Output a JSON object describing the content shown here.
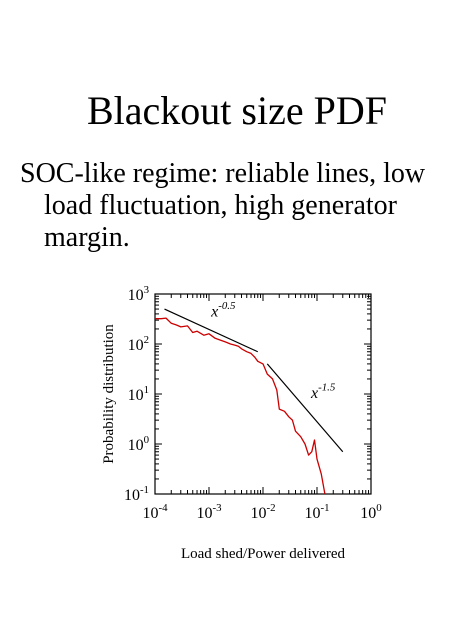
{
  "slide": {
    "title": "Blackout size PDF",
    "bullet_lines": [
      "SOC-like regime: reliable lines, low",
      "load fluctuation, high generator",
      "margin."
    ]
  },
  "chart_data": {
    "type": "line",
    "xlabel": "Load shed/Power delivered",
    "ylabel": "Probability distribution",
    "x_scale": "log",
    "y_scale": "log",
    "xlim": [
      0.0001,
      1
    ],
    "ylim": [
      0.1,
      1000
    ],
    "x_ticks": [
      0.0001,
      0.001,
      0.01,
      0.1,
      1
    ],
    "y_ticks": [
      0.1,
      1,
      10,
      100,
      1000
    ],
    "x_tick_labels": [
      {
        "base": "10",
        "exp": "-4"
      },
      {
        "base": "10",
        "exp": "-3"
      },
      {
        "base": "10",
        "exp": "-2"
      },
      {
        "base": "10",
        "exp": "-1"
      },
      {
        "base": "10",
        "exp": "0"
      }
    ],
    "y_tick_labels": [
      {
        "base": "10",
        "exp": "-1"
      },
      {
        "base": "10",
        "exp": "0"
      },
      {
        "base": "10",
        "exp": "1"
      },
      {
        "base": "10",
        "exp": "2"
      },
      {
        "base": "10",
        "exp": "3"
      }
    ],
    "grid": false,
    "series": [
      {
        "color": "#cc0000",
        "x": [
          0.0001,
          0.00013,
          0.00016,
          0.0002,
          0.00025,
          0.0003,
          0.0004,
          0.0005,
          0.0006,
          0.0008,
          0.001,
          0.0013,
          0.0016,
          0.002,
          0.0025,
          0.003,
          0.0035,
          0.004,
          0.005,
          0.006,
          0.007,
          0.008,
          0.01,
          0.012,
          0.015,
          0.018,
          0.02,
          0.025,
          0.03,
          0.035,
          0.04,
          0.05,
          0.06,
          0.07,
          0.08,
          0.09,
          0.1,
          0.12,
          0.14
        ],
        "y": [
          320,
          320,
          330,
          260,
          240,
          220,
          230,
          170,
          180,
          150,
          160,
          130,
          120,
          110,
          100,
          95,
          90,
          80,
          70,
          65,
          55,
          45,
          40,
          25,
          20,
          12,
          5,
          4.5,
          3.5,
          3,
          1.8,
          1.4,
          1.0,
          0.6,
          0.7,
          1.2,
          0.5,
          0.25,
          0.1
        ]
      }
    ],
    "reference_lines": [
      {
        "label_base": "x",
        "label_exp": "-0.5",
        "x": [
          0.00015,
          0.008
        ],
        "y": [
          500,
          70
        ]
      },
      {
        "label_base": "x",
        "label_exp": "-1.5",
        "x": [
          0.012,
          0.3
        ],
        "y": [
          40,
          0.7
        ]
      }
    ]
  }
}
